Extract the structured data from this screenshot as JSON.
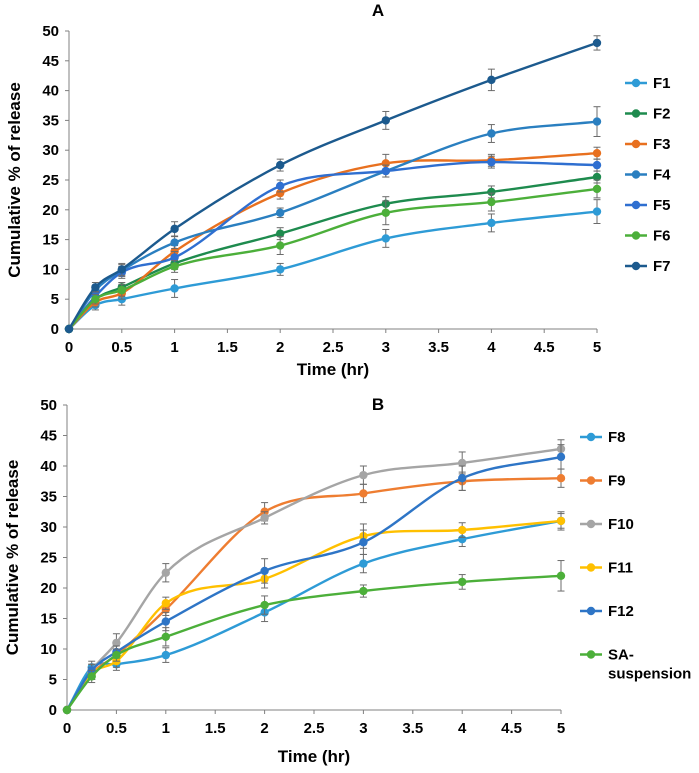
{
  "chart_data": [
    {
      "type": "line",
      "title": "A",
      "xlabel": "Time (hr)",
      "ylabel": "Cumulative % of release",
      "xlim": [
        0,
        5
      ],
      "ylim": [
        0,
        50
      ],
      "xticks": [
        0,
        0.5,
        1,
        1.5,
        2,
        2.5,
        3,
        3.5,
        4,
        4.5,
        5
      ],
      "yticks": [
        0,
        5,
        10,
        15,
        20,
        25,
        30,
        35,
        40,
        45,
        50
      ],
      "x": [
        0,
        0.25,
        0.5,
        1,
        2,
        3,
        4,
        5
      ],
      "series": [
        {
          "name": "F1",
          "color": "#2e9bd6",
          "values": [
            0,
            4.0,
            5.0,
            6.8,
            10.0,
            15.2,
            17.8,
            19.7
          ],
          "errors": [
            0,
            0.8,
            1.0,
            1.5,
            1.0,
            1.5,
            1.5,
            2.0
          ]
        },
        {
          "name": "F2",
          "color": "#1e8b4e",
          "values": [
            0,
            5.0,
            7.0,
            11.0,
            16.0,
            21.0,
            23.0,
            25.5
          ],
          "errors": [
            0,
            0.8,
            0.8,
            1.0,
            1.0,
            1.2,
            1.0,
            1.0
          ]
        },
        {
          "name": "F3",
          "color": "#e8701f",
          "values": [
            0,
            4.5,
            6.0,
            13.0,
            22.8,
            27.8,
            28.3,
            29.5
          ],
          "errors": [
            0,
            0.8,
            1.0,
            1.0,
            1.0,
            1.5,
            1.0,
            1.0
          ]
        },
        {
          "name": "F4",
          "color": "#2a7fc0",
          "values": [
            0,
            6.5,
            9.8,
            14.5,
            19.5,
            26.5,
            32.8,
            34.8
          ],
          "errors": [
            0,
            0.8,
            1.0,
            1.0,
            0.8,
            1.0,
            1.5,
            2.5
          ]
        },
        {
          "name": "F5",
          "color": "#2f6fd0",
          "values": [
            0,
            5.5,
            9.5,
            12.0,
            24.0,
            26.5,
            28.0,
            27.5
          ],
          "errors": [
            0,
            0.8,
            1.0,
            1.0,
            1.0,
            1.0,
            1.0,
            1.0
          ]
        },
        {
          "name": "F6",
          "color": "#4caf3a",
          "values": [
            0,
            5.0,
            6.5,
            10.5,
            14.0,
            19.5,
            21.3,
            23.5
          ],
          "errors": [
            0,
            0.8,
            1.0,
            1.0,
            1.5,
            2.0,
            1.5,
            1.5
          ]
        },
        {
          "name": "F7",
          "color": "#1c5a8e",
          "values": [
            0,
            7.0,
            10.0,
            16.8,
            27.5,
            35.0,
            41.8,
            48.0
          ],
          "errors": [
            0,
            0.8,
            1.0,
            1.2,
            1.0,
            1.5,
            1.8,
            1.2
          ]
        }
      ]
    },
    {
      "type": "line",
      "title": "B",
      "xlabel": "Time (hr)",
      "ylabel": "Cumulative % of release",
      "xlim": [
        0,
        5
      ],
      "ylim": [
        0,
        50
      ],
      "xticks": [
        0,
        0.5,
        1,
        1.5,
        2,
        2.5,
        3,
        3.5,
        4,
        4.5,
        5
      ],
      "yticks": [
        0,
        5,
        10,
        15,
        20,
        25,
        30,
        35,
        40,
        45,
        50
      ],
      "x": [
        0,
        0.25,
        0.5,
        1,
        2,
        3,
        4,
        5
      ],
      "series": [
        {
          "name": "F8",
          "color": "#2e9bd6",
          "values": [
            0,
            7.0,
            7.5,
            9.0,
            16.0,
            24.0,
            28.0,
            31.0
          ],
          "errors": [
            0,
            1.0,
            1.0,
            1.2,
            1.5,
            1.5,
            1.2,
            1.5
          ]
        },
        {
          "name": "F9",
          "color": "#ee7d31",
          "values": [
            0,
            6.0,
            9.0,
            16.5,
            32.5,
            35.5,
            37.5,
            38.0
          ],
          "errors": [
            0,
            1.0,
            1.0,
            1.0,
            1.5,
            1.5,
            1.5,
            1.5
          ]
        },
        {
          "name": "F10",
          "color": "#a5a5a5",
          "values": [
            0,
            6.5,
            11.0,
            22.5,
            31.5,
            38.5,
            40.5,
            42.8
          ],
          "errors": [
            0,
            1.0,
            1.5,
            1.5,
            1.0,
            1.5,
            1.8,
            1.5
          ]
        },
        {
          "name": "F11",
          "color": "#ffc000",
          "values": [
            0,
            6.0,
            8.0,
            17.5,
            21.5,
            28.5,
            29.5,
            31.0
          ],
          "errors": [
            0,
            1.0,
            1.0,
            1.0,
            1.5,
            2.0,
            1.2,
            1.2
          ]
        },
        {
          "name": "F12",
          "color": "#2e75c6",
          "values": [
            0,
            6.5,
            9.5,
            14.5,
            22.8,
            27.5,
            38.0,
            41.5
          ],
          "errors": [
            0,
            1.0,
            1.0,
            1.5,
            2.0,
            2.0,
            2.0,
            2.0
          ]
        },
        {
          "name": "SA-suspension",
          "label_lines": [
            "SA-",
            "suspension"
          ],
          "color": "#4caf3a",
          "values": [
            0,
            5.5,
            9.0,
            12.0,
            17.2,
            19.5,
            21.0,
            22.0
          ],
          "errors": [
            0,
            1.0,
            1.0,
            1.5,
            1.5,
            1.0,
            1.2,
            2.5
          ]
        }
      ]
    }
  ]
}
